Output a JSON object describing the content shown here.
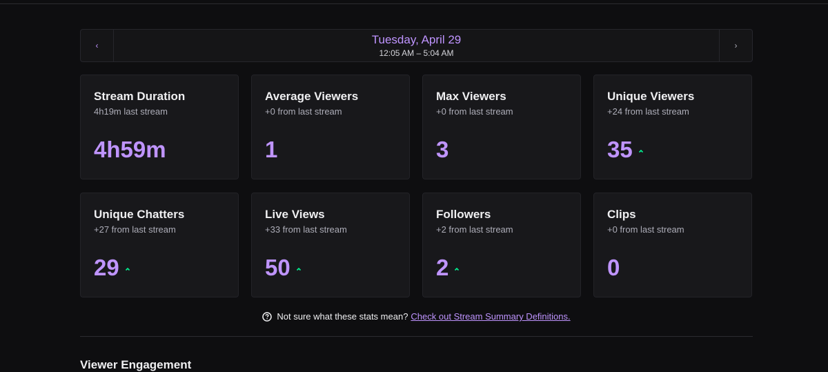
{
  "date_nav": {
    "prev_icon": "chevron-left-icon",
    "next_icon": "chevron-right-icon",
    "title": "Tuesday, April 29",
    "range": "12:05 AM – 5:04 AM"
  },
  "cards": [
    {
      "title": "Stream Duration",
      "sub": "4h19m last stream",
      "value": "4h59m",
      "trend_up": false
    },
    {
      "title": "Average Viewers",
      "sub": "+0 from last stream",
      "value": "1",
      "trend_up": false
    },
    {
      "title": "Max Viewers",
      "sub": "+0 from last stream",
      "value": "3",
      "trend_up": false
    },
    {
      "title": "Unique Viewers",
      "sub": "+24 from last stream",
      "value": "35",
      "trend_up": true
    },
    {
      "title": "Unique Chatters",
      "sub": "+27 from last stream",
      "value": "29",
      "trend_up": true
    },
    {
      "title": "Live Views",
      "sub": "+33 from last stream",
      "value": "50",
      "trend_up": true
    },
    {
      "title": "Followers",
      "sub": "+2 from last stream",
      "value": "2",
      "trend_up": true
    },
    {
      "title": "Clips",
      "sub": "+0 from last stream",
      "value": "0",
      "trend_up": false
    }
  ],
  "help": {
    "icon": "question-circle-icon",
    "text": "Not sure what these stats mean?",
    "link": "Check out Stream Summary Definitions."
  },
  "section_title": "Viewer Engagement",
  "colors": {
    "accent": "#bf94ff",
    "trend_up": "#00f593",
    "background": "#0e0e10",
    "card": "#18181b"
  }
}
